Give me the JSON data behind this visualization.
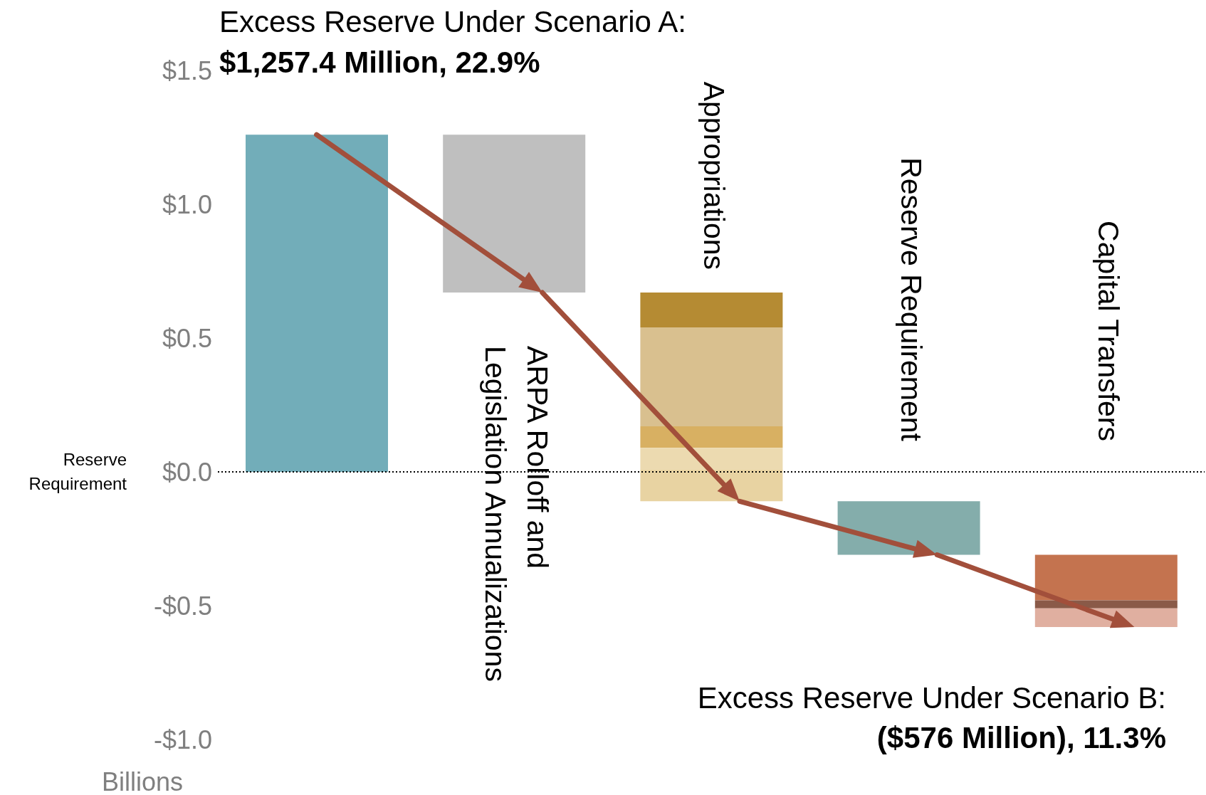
{
  "chart_data": {
    "type": "bar",
    "categories": [
      null,
      "ARPA Rolloff and Legislation Annualizations",
      "Appropriations",
      "Reserve Requirement",
      "Capital Transfers"
    ],
    "series": [
      {
        "color": "#72adb9",
        "base": [
          0,
          null,
          null,
          null,
          null
        ],
        "values": [
          1.26,
          null,
          null,
          null,
          null
        ]
      },
      {
        "color": "#bfbfbf",
        "base": [
          null,
          1.26,
          null,
          null,
          null
        ],
        "values": [
          null,
          -0.59,
          null,
          null,
          null
        ]
      },
      {
        "color": "#b58b33",
        "base": [
          null,
          null,
          0.67,
          null,
          null
        ],
        "values": [
          null,
          null,
          -0.13,
          null,
          null
        ]
      },
      {
        "color": "#d9c08f",
        "base": [
          null,
          null,
          0.54,
          null,
          null
        ],
        "values": [
          null,
          null,
          -0.37,
          null,
          null
        ]
      },
      {
        "color": "#d8b062",
        "base": [
          null,
          null,
          0.17,
          null,
          null
        ],
        "values": [
          null,
          null,
          -0.08,
          null,
          null
        ]
      },
      {
        "color": "#ecdab0",
        "base": [
          null,
          null,
          0.09,
          null,
          null
        ],
        "values": [
          null,
          null,
          -0.08,
          null,
          null
        ]
      },
      {
        "color": "#e8d3a2",
        "base": [
          null,
          null,
          0.01,
          null,
          null
        ],
        "values": [
          null,
          null,
          -0.12,
          null,
          null
        ]
      },
      {
        "color": "#84adab",
        "base": [
          null,
          null,
          null,
          -0.11,
          null
        ],
        "values": [
          null,
          null,
          null,
          -0.2,
          null
        ]
      },
      {
        "color": "#c4734f",
        "base": [
          null,
          null,
          null,
          null,
          -0.31
        ],
        "values": [
          null,
          null,
          null,
          null,
          -0.17
        ]
      },
      {
        "color": "#8a5a48",
        "base": [
          null,
          null,
          null,
          null,
          -0.48
        ],
        "values": [
          null,
          null,
          null,
          null,
          -0.03
        ]
      },
      {
        "color": "#e0afa0",
        "base": [
          null,
          null,
          null,
          null,
          -0.51
        ],
        "values": [
          null,
          null,
          null,
          null,
          -0.07
        ]
      }
    ],
    "ylim": [
      -1,
      1.5
    ],
    "yticks": [
      {
        "value": -1,
        "label": "-$1.0"
      },
      {
        "value": -0.5,
        "label": "-$0.5"
      },
      {
        "value": 0,
        "label": "$0.0"
      },
      {
        "value": 0.5,
        "label": "$0.5"
      },
      {
        "value": 1,
        "label": "$1.0"
      },
      {
        "value": 1.5,
        "label": "$1.5"
      }
    ],
    "ylabel": "Billions",
    "ref_lines": [
      {
        "axis": "y",
        "value": 0,
        "label": "Reserve Requirement",
        "color": "#000000",
        "line_style": "dotted"
      }
    ],
    "annotations": [
      "Excess Reserve Under Scenario A:",
      "$1,257.4 Million, 22.9%",
      "Excess Reserve Under Scenario B:",
      "($576 Million), 11.3%"
    ],
    "legend": false,
    "grid": false
  }
}
